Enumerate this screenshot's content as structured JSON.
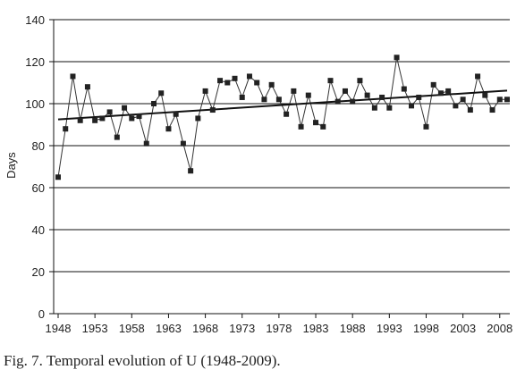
{
  "chart_data": {
    "type": "line",
    "ylabel": "Days",
    "xlabel": "",
    "title": "",
    "ylim": [
      0,
      140
    ],
    "xlim": [
      1948,
      2009
    ],
    "yticks": [
      0,
      20,
      40,
      60,
      80,
      100,
      120,
      140
    ],
    "xticks": [
      1948,
      1953,
      1958,
      1963,
      1968,
      1973,
      1978,
      1983,
      1988,
      1993,
      1998,
      2003,
      2008
    ],
    "grid": "horizontal",
    "legend": "none",
    "series": [
      {
        "x": [
          1948,
          1949,
          1950,
          1951,
          1952,
          1953,
          1954,
          1955,
          1956,
          1957,
          1958,
          1959,
          1960,
          1961,
          1962,
          1963,
          1964,
          1965,
          1966,
          1967,
          1968,
          1969,
          1970,
          1971,
          1972,
          1973,
          1974,
          1975,
          1976,
          1977,
          1978,
          1979,
          1980,
          1981,
          1982,
          1983,
          1984,
          1985,
          1986,
          1987,
          1988,
          1989,
          1990,
          1991,
          1992,
          1993,
          1994,
          1995,
          1996,
          1997,
          1998,
          1999,
          2000,
          2001,
          2002,
          2003,
          2004,
          2005,
          2006,
          2007,
          2008,
          2009
        ],
        "values": [
          65,
          88,
          113,
          92,
          108,
          92,
          93,
          96,
          84,
          98,
          93,
          94,
          81,
          100,
          105,
          88,
          95,
          81,
          68,
          93,
          106,
          97,
          111,
          110,
          112,
          103,
          113,
          110,
          102,
          109,
          102,
          95,
          106,
          89,
          104,
          91,
          89,
          111,
          101,
          106,
          101,
          111,
          104,
          98,
          103,
          98,
          122,
          107,
          99,
          103,
          89,
          109,
          105,
          106,
          99,
          102,
          97,
          113,
          104,
          97,
          102,
          102
        ],
        "marker": "square",
        "color": "#222222"
      }
    ],
    "trendline": {
      "x": [
        1948,
        2009
      ],
      "values": [
        92.5,
        106.2
      ],
      "color": "#111111"
    }
  },
  "caption": "Fig. 7. Temporal evolution of U (1948-2009)."
}
